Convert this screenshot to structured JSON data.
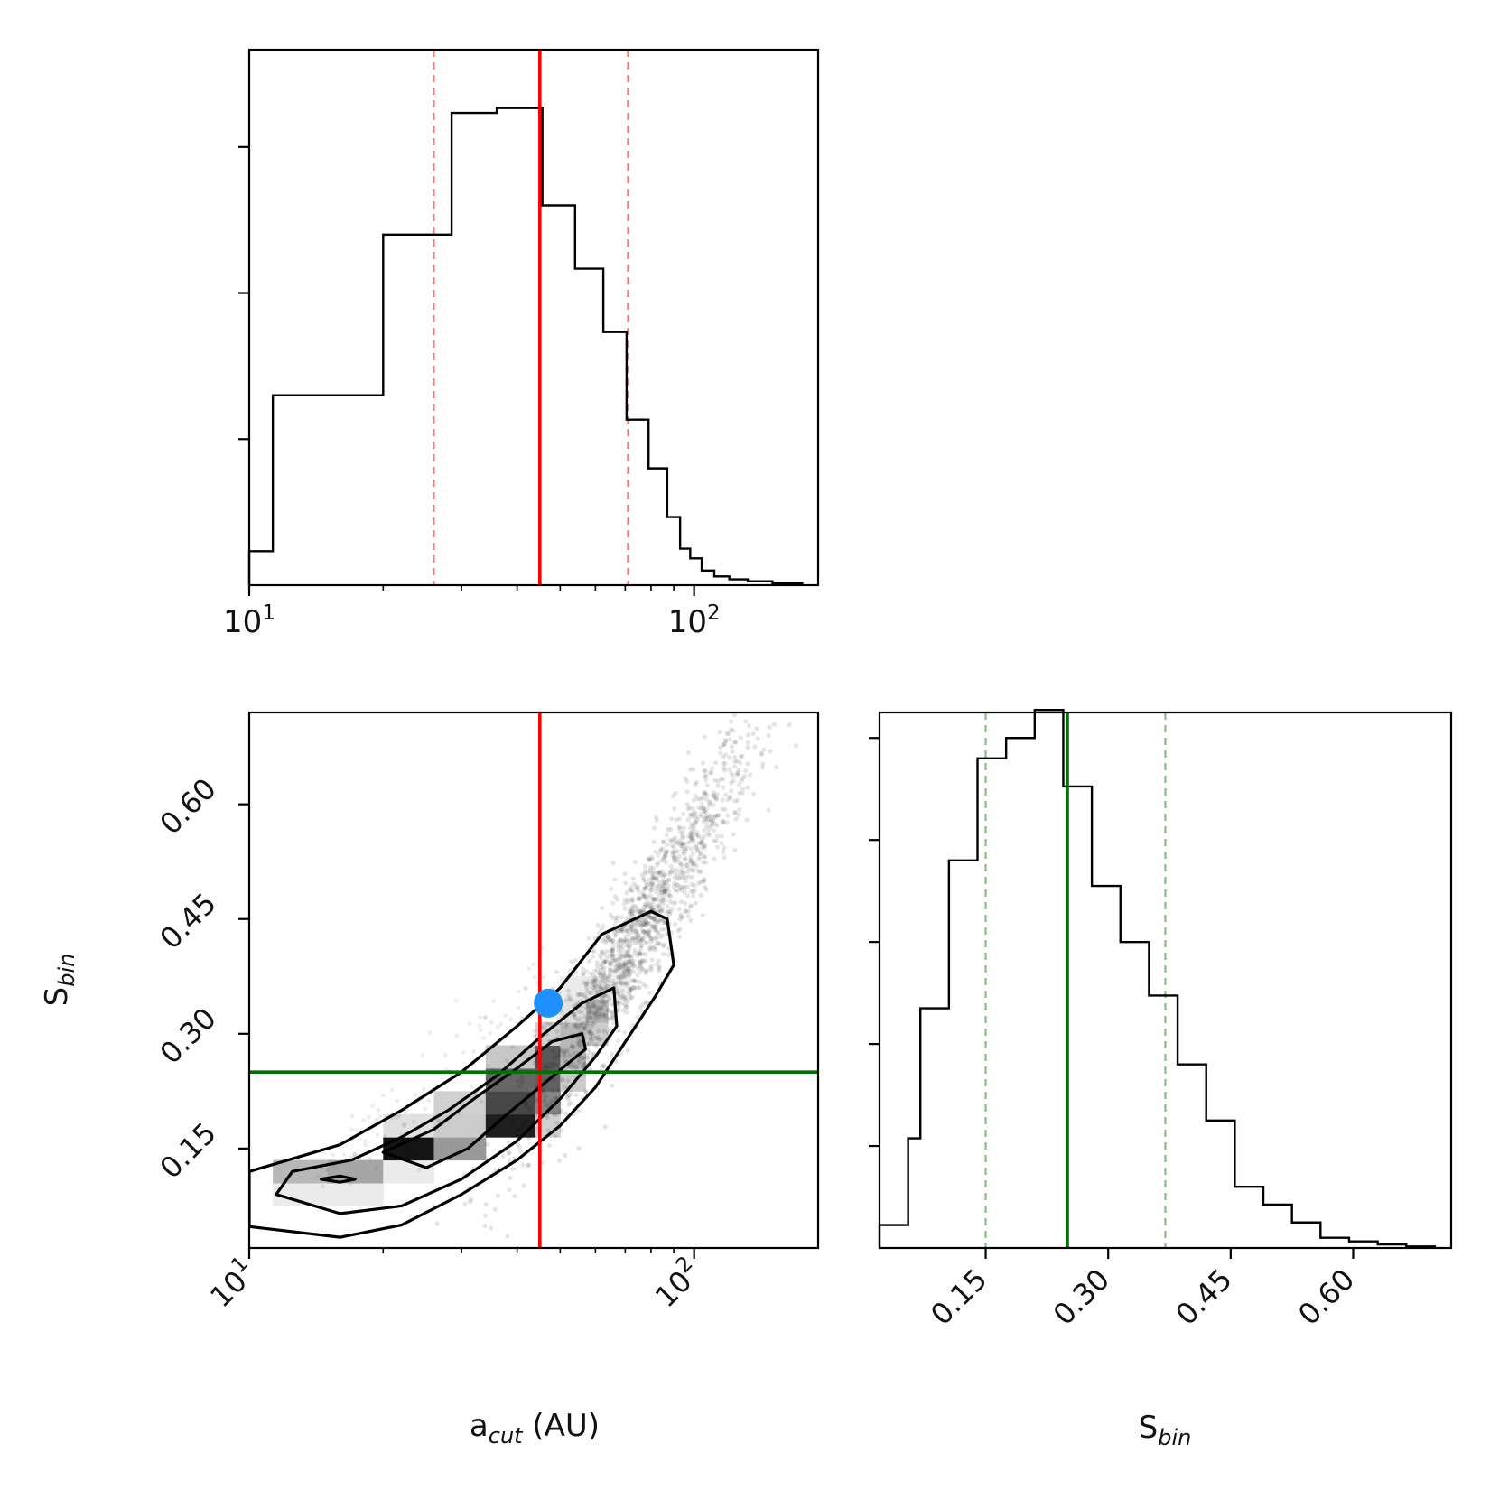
{
  "chart_data": [
    {
      "panel": "top-left",
      "type": "histogram",
      "xscale": "log",
      "xlim": [
        10,
        190
      ],
      "ylim": [
        0,
        1.1
      ],
      "x_tick_labels": [
        {
          "base": "10",
          "exp": "1",
          "value": 10
        },
        {
          "base": "10",
          "exp": "2",
          "value": 100
        }
      ],
      "y_ticks": [
        0.3,
        0.6,
        0.9
      ],
      "bin_edges": [
        10,
        11.3,
        20,
        28.5,
        36,
        39,
        45.6,
        54,
        62.5,
        70.5,
        79,
        87,
        93,
        98,
        104,
        111,
        120,
        132,
        150,
        175
      ],
      "values": [
        0.07,
        0.39,
        0.72,
        0.97,
        0.98,
        0.98,
        0.78,
        0.65,
        0.52,
        0.34,
        0.24,
        0.14,
        0.075,
        0.055,
        0.03,
        0.018,
        0.012,
        0.008,
        0.004
      ],
      "median": 45,
      "quantiles": [
        26,
        71
      ],
      "median_color": "#ff0000",
      "quantile_color": "#f08080"
    },
    {
      "panel": "bottom-left",
      "type": "scatter",
      "xscale": "log",
      "xlim": [
        10,
        190
      ],
      "ylim": [
        0.02,
        0.72
      ],
      "xlabel_main": "a",
      "xlabel_sub": "cut",
      "xlabel_unit": " (AU)",
      "ylabel_main": "S",
      "ylabel_sub": "bin",
      "x_tick_labels": [
        {
          "base": "10",
          "exp": "1",
          "value": 10
        },
        {
          "base": "10",
          "exp": "2",
          "value": 100
        }
      ],
      "y_tick_labels": [
        "0.15",
        "0.30",
        "0.45",
        "0.60"
      ],
      "y_ticks": [
        0.15,
        0.3,
        0.45,
        0.6
      ],
      "density_cells": [
        {
          "x0": 11.3,
          "x1": 15,
          "y0": 0.075,
          "y1": 0.105,
          "level": 0.08
        },
        {
          "x0": 15,
          "x1": 20,
          "y0": 0.075,
          "y1": 0.105,
          "level": 0.08
        },
        {
          "x0": 11.3,
          "x1": 15,
          "y0": 0.105,
          "y1": 0.135,
          "level": 0.28
        },
        {
          "x0": 15,
          "x1": 20,
          "y0": 0.105,
          "y1": 0.135,
          "level": 0.35
        },
        {
          "x0": 20,
          "x1": 26,
          "y0": 0.105,
          "y1": 0.135,
          "level": 0.08
        },
        {
          "x0": 20,
          "x1": 26,
          "y0": 0.135,
          "y1": 0.165,
          "level": 0.92
        },
        {
          "x0": 26,
          "x1": 34,
          "y0": 0.135,
          "y1": 0.165,
          "level": 0.4
        },
        {
          "x0": 20,
          "x1": 26,
          "y0": 0.165,
          "y1": 0.195,
          "level": 0.12
        },
        {
          "x0": 26,
          "x1": 34,
          "y0": 0.165,
          "y1": 0.195,
          "level": 0.2
        },
        {
          "x0": 34,
          "x1": 44,
          "y0": 0.165,
          "y1": 0.195,
          "level": 0.88
        },
        {
          "x0": 44,
          "x1": 50,
          "y0": 0.165,
          "y1": 0.195,
          "level": 0.18
        },
        {
          "x0": 26,
          "x1": 34,
          "y0": 0.195,
          "y1": 0.225,
          "level": 0.18
        },
        {
          "x0": 34,
          "x1": 44,
          "y0": 0.195,
          "y1": 0.225,
          "level": 0.72
        },
        {
          "x0": 44,
          "x1": 50,
          "y0": 0.195,
          "y1": 0.225,
          "level": 0.48
        },
        {
          "x0": 34,
          "x1": 44,
          "y0": 0.225,
          "y1": 0.255,
          "level": 0.6
        },
        {
          "x0": 44,
          "x1": 50,
          "y0": 0.225,
          "y1": 0.255,
          "level": 0.62
        },
        {
          "x0": 50,
          "x1": 57,
          "y0": 0.225,
          "y1": 0.255,
          "level": 0.2
        },
        {
          "x0": 34,
          "x1": 44,
          "y0": 0.255,
          "y1": 0.285,
          "level": 0.22
        },
        {
          "x0": 44,
          "x1": 50,
          "y0": 0.255,
          "y1": 0.285,
          "level": 0.65
        },
        {
          "x0": 50,
          "x1": 57,
          "y0": 0.255,
          "y1": 0.285,
          "level": 0.3
        },
        {
          "x0": 44,
          "x1": 50,
          "y0": 0.285,
          "y1": 0.315,
          "level": 0.18
        },
        {
          "x0": 50,
          "x1": 57,
          "y0": 0.285,
          "y1": 0.315,
          "level": 0.28
        },
        {
          "x0": 57,
          "x1": 64,
          "y0": 0.285,
          "y1": 0.315,
          "level": 0.2
        },
        {
          "x0": 57,
          "x1": 64,
          "y0": 0.315,
          "y1": 0.345,
          "level": 0.3
        },
        {
          "x0": 50,
          "x1": 57,
          "y0": 0.315,
          "y1": 0.345,
          "level": 0.12
        },
        {
          "x0": 50,
          "x1": 57,
          "y0": 0.345,
          "y1": 0.375,
          "level": 0.08
        },
        {
          "x0": 57,
          "x1": 64,
          "y0": 0.345,
          "y1": 0.375,
          "level": 0.1
        },
        {
          "x0": 64,
          "x1": 72,
          "y0": 0.345,
          "y1": 0.375,
          "level": 0.06
        },
        {
          "x0": 64,
          "x1": 72,
          "y0": 0.375,
          "y1": 0.405,
          "level": 0.06
        }
      ],
      "contours": [
        {
          "stroke_width": 3.2,
          "points": [
            [
              10,
              0.048
            ],
            [
              16,
              0.034
            ],
            [
              22,
              0.05
            ],
            [
              30,
              0.09
            ],
            [
              40,
              0.135
            ],
            [
              50,
              0.18
            ],
            [
              60,
              0.23
            ],
            [
              72,
              0.3
            ],
            [
              82,
              0.35
            ],
            [
              90,
              0.39
            ],
            [
              87,
              0.45
            ],
            [
              80,
              0.46
            ],
            [
              62,
              0.43
            ],
            [
              50,
              0.36
            ],
            [
              40,
              0.31
            ],
            [
              30,
              0.25
            ],
            [
              22,
              0.2
            ],
            [
              16,
              0.155
            ],
            [
              10,
              0.12
            ]
          ]
        },
        {
          "stroke_width": 3.2,
          "points": [
            [
              11.5,
              0.09
            ],
            [
              16,
              0.065
            ],
            [
              22,
              0.075
            ],
            [
              30,
              0.11
            ],
            [
              40,
              0.16
            ],
            [
              50,
              0.215
            ],
            [
              60,
              0.27
            ],
            [
              67,
              0.31
            ],
            [
              66,
              0.36
            ],
            [
              56,
              0.34
            ],
            [
              46,
              0.3
            ],
            [
              36,
              0.245
            ],
            [
              28,
              0.2
            ],
            [
              22,
              0.165
            ],
            [
              17,
              0.135
            ],
            [
              12.5,
              0.12
            ],
            [
              11.5,
              0.09
            ]
          ]
        },
        {
          "stroke_width": 3.2,
          "points": [
            [
              20,
              0.145
            ],
            [
              25,
              0.125
            ],
            [
              31,
              0.15
            ],
            [
              38,
              0.195
            ],
            [
              46,
              0.235
            ],
            [
              53,
              0.265
            ],
            [
              57,
              0.28
            ],
            [
              56,
              0.3
            ],
            [
              48,
              0.29
            ],
            [
              40,
              0.255
            ],
            [
              32,
              0.215
            ],
            [
              26,
              0.175
            ],
            [
              20,
              0.145
            ]
          ]
        },
        {
          "stroke_width": 3.2,
          "points": [
            [
              14.5,
              0.11
            ],
            [
              16,
              0.106
            ],
            [
              17.3,
              0.11
            ],
            [
              16,
              0.114
            ],
            [
              14.5,
              0.11
            ]
          ]
        }
      ],
      "point_cloud": {
        "count": 1500,
        "center_x": 75,
        "center_y": 0.43,
        "color": "#000000",
        "opacity": 0.1
      },
      "vline": 45,
      "vline_color": "#ff0000",
      "hline": 0.25,
      "hline_color": "#007000",
      "marker": {
        "x": 47,
        "y": 0.34,
        "color": "#1e90ff"
      }
    },
    {
      "panel": "bottom-right",
      "type": "histogram",
      "xlim": [
        0.02,
        0.72
      ],
      "ylim": [
        0,
        1.05
      ],
      "xlabel_main": "S",
      "xlabel_sub": "bin",
      "x_tick_labels": [
        "0.15",
        "0.30",
        "0.45",
        "0.60"
      ],
      "x_ticks": [
        0.15,
        0.3,
        0.45,
        0.6
      ],
      "y_ticks": [
        0.2,
        0.4,
        0.6,
        0.8,
        1.0
      ],
      "bin_edges": [
        0.02,
        0.055,
        0.07,
        0.105,
        0.14,
        0.175,
        0.21,
        0.245,
        0.28,
        0.315,
        0.35,
        0.385,
        0.42,
        0.455,
        0.49,
        0.525,
        0.56,
        0.595,
        0.63,
        0.665,
        0.7
      ],
      "values": [
        0.045,
        0.215,
        0.47,
        0.76,
        0.96,
        1.0,
        1.055,
        0.905,
        0.71,
        0.6,
        0.495,
        0.36,
        0.25,
        0.12,
        0.085,
        0.05,
        0.02,
        0.013,
        0.007,
        0.003
      ],
      "median": 0.25,
      "quantiles": [
        0.15,
        0.37
      ],
      "median_color": "#007000",
      "quantile_color": "#7fbf7f"
    }
  ]
}
